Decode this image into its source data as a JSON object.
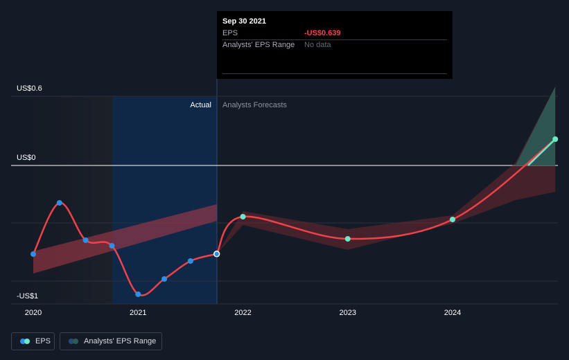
{
  "chart_data": {
    "type": "line",
    "x_ticks": [
      "2020",
      "2021",
      "2022",
      "2023",
      "2024"
    ],
    "y_ticks": [
      {
        "value": 0.6,
        "label": "US$0.6"
      },
      {
        "value": 0,
        "label": "US$0"
      },
      {
        "value": -1,
        "label": "-US$1"
      }
    ],
    "ylim": [
      -1.0,
      0.6
    ],
    "xlim": [
      2019.85,
      2024.98
    ],
    "grid": "horizontal",
    "divider_labels": {
      "actual": "Actual",
      "forecast": "Analysts Forecasts"
    },
    "series": [
      {
        "name": "EPS",
        "color": "#f0424a",
        "actual_points": [
          {
            "x": "2019-12-31",
            "xv": 2020.0,
            "y": -0.64
          },
          {
            "x": "2020-03-31",
            "xv": 2020.25,
            "y": -0.27
          },
          {
            "x": "2020-06-30",
            "xv": 2020.5,
            "y": -0.54
          },
          {
            "x": "2020-09-30",
            "xv": 2020.75,
            "y": -0.58
          },
          {
            "x": "2020-12-31",
            "xv": 2021.0,
            "y": -0.93
          },
          {
            "x": "2021-03-31",
            "xv": 2021.25,
            "y": -0.82
          },
          {
            "x": "2021-06-30",
            "xv": 2021.5,
            "y": -0.69
          },
          {
            "x": "2021-09-30",
            "xv": 2021.75,
            "y": -0.639
          }
        ],
        "forecast_points": [
          {
            "x": "2021-12-31",
            "xv": 2022.0,
            "y": -0.37
          },
          {
            "x": "2022-12-31",
            "xv": 2023.0,
            "y": -0.53
          },
          {
            "x": "2023-12-31",
            "xv": 2024.0,
            "y": -0.39
          },
          {
            "x": "2024-12-31",
            "xv": 2024.98,
            "y": 0.19
          }
        ]
      },
      {
        "name": "Analysts' EPS Range",
        "trend_band": {
          "x": [
            2020.0,
            2021.75
          ],
          "low": [
            -0.78,
            -0.4
          ],
          "high": [
            -0.62,
            -0.28
          ]
        },
        "forecast_range": {
          "x": [
            2021.75,
            2022.0,
            2023.0,
            2024.0,
            2024.6,
            2024.98
          ],
          "low": [
            -0.64,
            -0.43,
            -0.61,
            -0.42,
            -0.25,
            -0.19
          ],
          "high": [
            -0.64,
            -0.33,
            -0.46,
            -0.36,
            0.02,
            0.57
          ]
        }
      }
    ]
  },
  "tooltip": {
    "date": "Sep 30 2021",
    "eps_label": "EPS",
    "eps_value": "-US$0.639",
    "range_label": "Analysts' EPS Range",
    "range_value": "No data"
  },
  "legend": {
    "eps": "EPS",
    "range": "Analysts' EPS Range"
  },
  "colors": {
    "background": "#151b26",
    "eps_line": "#f0424a",
    "actual_dot": "#2f8fe5",
    "forecast_dot": "#6ee7c8",
    "highlight": "#0f2a4e"
  }
}
